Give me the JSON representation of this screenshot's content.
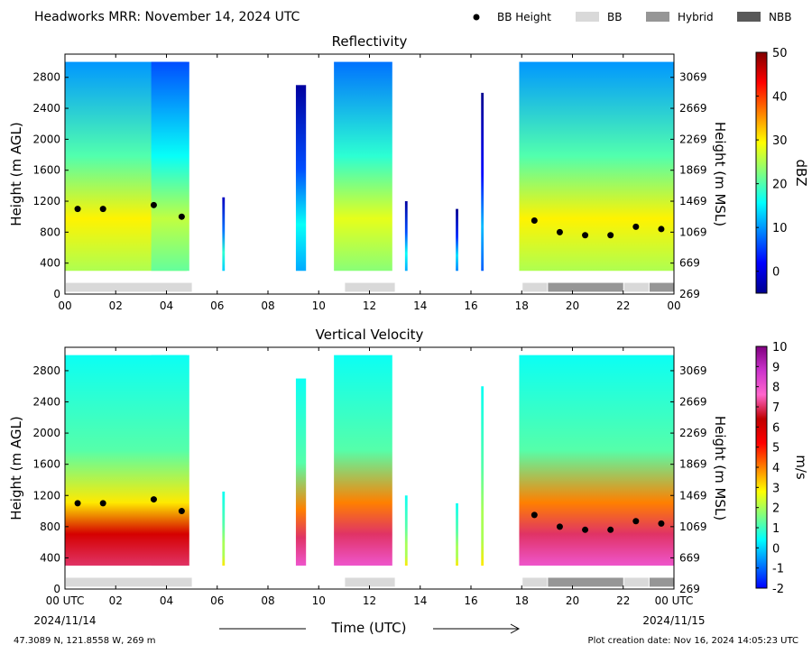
{
  "header": {
    "title": "Headworks MRR:  November 14, 2024 UTC",
    "legend": [
      {
        "label": "BB Height",
        "symbol": "dot",
        "color": "#000000"
      },
      {
        "label": "BB",
        "symbol": "box",
        "color": "#d9d9d9"
      },
      {
        "label": "Hybrid",
        "symbol": "box",
        "color": "#969696"
      },
      {
        "label": "NBB",
        "symbol": "box",
        "color": "#595959"
      }
    ]
  },
  "colors": {
    "bb": "#d9d9d9",
    "hybrid": "#969696",
    "nbb": "#595959",
    "reflectivity_colormap": [
      "#00008f",
      "#0000ff",
      "#0080ff",
      "#00ffff",
      "#80ff80",
      "#ffff00",
      "#ff8000",
      "#ff0000",
      "#800000"
    ],
    "velocity_colormap": [
      "#0000ff",
      "#0080ff",
      "#00ffff",
      "#80ff80",
      "#ffff00",
      "#ff8000",
      "#ff0000",
      "#c00000",
      "#ff66cc",
      "#cc33cc",
      "#800080"
    ]
  },
  "chart_data": [
    {
      "type": "heatmap",
      "title": "Reflectivity",
      "xlabel": "",
      "ylabel": "Height (m AGL)",
      "ylabel_right": "Height (m MSL)",
      "xlim": [
        0,
        24
      ],
      "ylim": [
        0,
        3100
      ],
      "x_ticks": [
        "00",
        "02",
        "04",
        "06",
        "08",
        "10",
        "12",
        "14",
        "16",
        "18",
        "20",
        "22",
        "00"
      ],
      "y_ticks_left": [
        "0",
        "400",
        "800",
        "1200",
        "1600",
        "2000",
        "2400",
        "2800"
      ],
      "y_ticks_right": [
        "269",
        "669",
        "1069",
        "1469",
        "1869",
        "2269",
        "2669",
        "3069"
      ],
      "colorbar": {
        "label": "dBZ",
        "range": [
          -5,
          50
        ],
        "ticks": [
          "0",
          "10",
          "20",
          "30",
          "40",
          "50"
        ]
      },
      "precip_segments": [
        {
          "start": 0.0,
          "end": 4.8,
          "top": 3000,
          "value": 22
        },
        {
          "start": 3.4,
          "end": 4.9,
          "top": 3000,
          "value": 18
        },
        {
          "start": 6.2,
          "end": 6.3,
          "top": 1250,
          "value": 10
        },
        {
          "start": 9.1,
          "end": 9.5,
          "top": 2700,
          "value": 8
        },
        {
          "start": 10.6,
          "end": 12.9,
          "top": 3000,
          "value": 20
        },
        {
          "start": 13.4,
          "end": 13.5,
          "top": 1200,
          "value": 8
        },
        {
          "start": 15.4,
          "end": 15.5,
          "top": 1100,
          "value": 6
        },
        {
          "start": 16.4,
          "end": 16.5,
          "top": 2600,
          "value": 4
        },
        {
          "start": 17.9,
          "end": 24.0,
          "top": 3000,
          "value": 22
        }
      ],
      "bb_height_points": [
        {
          "x": 0.5,
          "y": 1100
        },
        {
          "x": 1.5,
          "y": 1100
        },
        {
          "x": 3.5,
          "y": 1150
        },
        {
          "x": 4.6,
          "y": 1000
        },
        {
          "x": 18.5,
          "y": 950
        },
        {
          "x": 19.5,
          "y": 800
        },
        {
          "x": 20.5,
          "y": 760
        },
        {
          "x": 21.5,
          "y": 760
        },
        {
          "x": 22.5,
          "y": 870
        },
        {
          "x": 23.5,
          "y": 840
        }
      ],
      "bb_type_bars": [
        {
          "start": 0.0,
          "end": 5.0,
          "type": "BB"
        },
        {
          "start": 11.0,
          "end": 13.0,
          "type": "BB"
        },
        {
          "start": 18.0,
          "end": 19.0,
          "type": "BB"
        },
        {
          "start": 19.0,
          "end": 22.0,
          "type": "Hybrid"
        },
        {
          "start": 22.0,
          "end": 23.0,
          "type": "BB"
        },
        {
          "start": 23.0,
          "end": 24.0,
          "type": "Hybrid"
        }
      ]
    },
    {
      "type": "heatmap",
      "title": "Vertical Velocity",
      "xlabel": "Time (UTC)",
      "ylabel": "Height (m AGL)",
      "ylabel_right": "Height (m MSL)",
      "xlim": [
        0,
        24
      ],
      "ylim": [
        0,
        3100
      ],
      "x_ticks": [
        "00 UTC",
        "02",
        "04",
        "06",
        "08",
        "10",
        "12",
        "14",
        "16",
        "18",
        "20",
        "22",
        "00 UTC"
      ],
      "x_date_start": "2024/11/14",
      "x_date_end": "2024/11/15",
      "y_ticks_left": [
        "0",
        "400",
        "800",
        "1200",
        "1600",
        "2000",
        "2400",
        "2800"
      ],
      "y_ticks_right": [
        "269",
        "669",
        "1069",
        "1469",
        "1869",
        "2269",
        "2669",
        "3069"
      ],
      "colorbar": {
        "label": "m/s",
        "range": [
          -2,
          10
        ],
        "ticks": [
          "-2",
          "-1",
          "0",
          "1",
          "2",
          "3",
          "4",
          "5",
          "6",
          "7",
          "8",
          "9",
          "10"
        ]
      },
      "precip_segments": [
        {
          "start": 0.0,
          "end": 4.8,
          "top": 3000,
          "value": 5
        },
        {
          "start": 3.4,
          "end": 4.9,
          "top": 3000,
          "value": 5
        },
        {
          "start": 6.2,
          "end": 6.3,
          "top": 1250,
          "value": 1
        },
        {
          "start": 9.1,
          "end": 9.5,
          "top": 2700,
          "value": 6
        },
        {
          "start": 10.6,
          "end": 12.9,
          "top": 3000,
          "value": 6
        },
        {
          "start": 13.4,
          "end": 13.5,
          "top": 1200,
          "value": 1
        },
        {
          "start": 15.4,
          "end": 15.5,
          "top": 1100,
          "value": 1
        },
        {
          "start": 16.4,
          "end": 16.5,
          "top": 2600,
          "value": 1
        },
        {
          "start": 17.9,
          "end": 24.0,
          "top": 3000,
          "value": 6
        }
      ],
      "bb_height_points": [
        {
          "x": 0.5,
          "y": 1100
        },
        {
          "x": 1.5,
          "y": 1100
        },
        {
          "x": 3.5,
          "y": 1150
        },
        {
          "x": 4.6,
          "y": 1000
        },
        {
          "x": 18.5,
          "y": 950
        },
        {
          "x": 19.5,
          "y": 800
        },
        {
          "x": 20.5,
          "y": 760
        },
        {
          "x": 21.5,
          "y": 760
        },
        {
          "x": 22.5,
          "y": 870
        },
        {
          "x": 23.5,
          "y": 840
        }
      ],
      "bb_type_bars": [
        {
          "start": 0.0,
          "end": 5.0,
          "type": "BB"
        },
        {
          "start": 11.0,
          "end": 13.0,
          "type": "BB"
        },
        {
          "start": 18.0,
          "end": 19.0,
          "type": "BB"
        },
        {
          "start": 19.0,
          "end": 22.0,
          "type": "Hybrid"
        },
        {
          "start": 22.0,
          "end": 23.0,
          "type": "BB"
        },
        {
          "start": 23.0,
          "end": 24.0,
          "type": "Hybrid"
        }
      ]
    }
  ],
  "footer": {
    "location": "47.3089 N, 121.8558 W, 269 m",
    "created": "Plot creation date: Nov 16, 2024 14:05:23 UTC"
  }
}
